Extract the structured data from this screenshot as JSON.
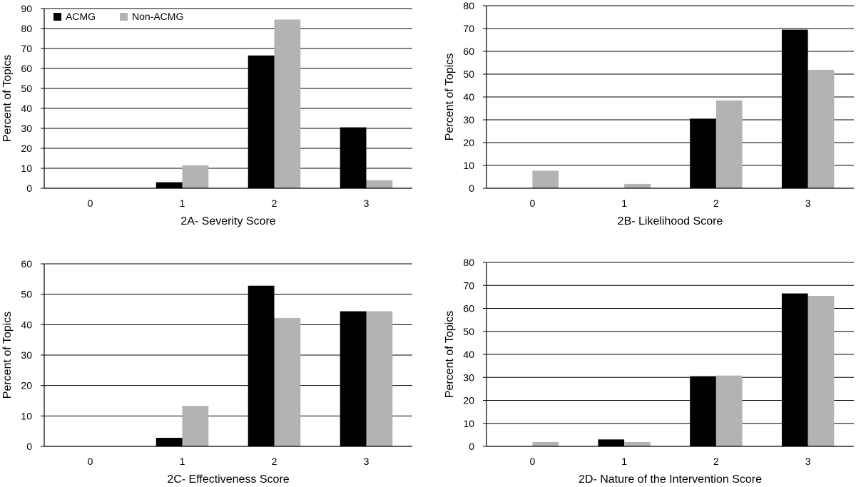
{
  "legend": {
    "placement": "top-left",
    "entries": [
      {
        "label": "ACMG",
        "color": "#000000"
      },
      {
        "label": "Non-ACMG",
        "color": "#b3b3b3"
      }
    ]
  },
  "chart_data": [
    {
      "type": "bar",
      "title": "",
      "xlabel": "2A- Severity Score",
      "ylabel": "Percent of Topics",
      "categories": [
        "0",
        "1",
        "2",
        "3"
      ],
      "ylim": [
        0,
        90
      ],
      "yticks": [
        0,
        10,
        20,
        30,
        40,
        50,
        60,
        70,
        80,
        90
      ],
      "grid": true,
      "series": [
        {
          "name": "ACMG",
          "color": "#000000",
          "values": [
            0,
            3,
            66.5,
            30.5
          ]
        },
        {
          "name": "Non-ACMG",
          "color": "#b3b3b3",
          "values": [
            0,
            11.5,
            84.5,
            4
          ]
        }
      ]
    },
    {
      "type": "bar",
      "title": "",
      "xlabel": "2B- Likelihood Score",
      "ylabel": "Percent of Topics",
      "categories": [
        "0",
        "1",
        "2",
        "3"
      ],
      "ylim": [
        0,
        80
      ],
      "yticks": [
        0,
        10,
        20,
        30,
        40,
        50,
        60,
        70,
        80
      ],
      "grid": true,
      "series": [
        {
          "name": "ACMG",
          "color": "#000000",
          "values": [
            0,
            0,
            30.5,
            69.5
          ]
        },
        {
          "name": "Non-ACMG",
          "color": "#b3b3b3",
          "values": [
            7.7,
            1.9,
            38.5,
            51.9
          ]
        }
      ]
    },
    {
      "type": "bar",
      "title": "",
      "xlabel": "2C- Effectiveness Score",
      "ylabel": "Percent of Topics",
      "categories": [
        "0",
        "1",
        "2",
        "3"
      ],
      "ylim": [
        0,
        60
      ],
      "yticks": [
        0,
        10,
        20,
        30,
        40,
        50,
        60
      ],
      "grid": true,
      "series": [
        {
          "name": "ACMG",
          "color": "#000000",
          "values": [
            0,
            2.8,
            52.8,
            44.4
          ]
        },
        {
          "name": "Non-ACMG",
          "color": "#b3b3b3",
          "values": [
            0,
            13.3,
            42.2,
            44.4
          ]
        }
      ]
    },
    {
      "type": "bar",
      "title": "",
      "xlabel": "2D- Nature of the Intervention Score",
      "ylabel": "Percent of Topics",
      "categories": [
        "0",
        "1",
        "2",
        "3"
      ],
      "ylim": [
        0,
        80
      ],
      "yticks": [
        0,
        10,
        20,
        30,
        40,
        50,
        60,
        70,
        80
      ],
      "grid": true,
      "series": [
        {
          "name": "ACMG",
          "color": "#000000",
          "values": [
            0,
            3,
            30.5,
            66.5
          ]
        },
        {
          "name": "Non-ACMG",
          "color": "#b3b3b3",
          "values": [
            1.9,
            1.9,
            30.8,
            65.4
          ]
        }
      ]
    }
  ]
}
